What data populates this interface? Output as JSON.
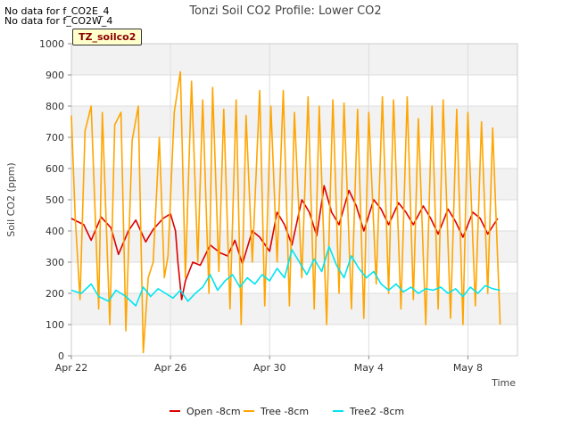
{
  "notes": [
    "No data for f_CO2E_4",
    "No data for f_CO2W_4"
  ],
  "site_label": "TZ_soilco2",
  "chart_data": {
    "type": "line",
    "title": "Tonzi Soil CO2 Profile: Lower CO2",
    "xlabel": "Time",
    "ylabel": "Soil CO2 (ppm)",
    "xlim": [
      0,
      18
    ],
    "ylim": [
      0,
      1000
    ],
    "x_ticks": [
      0,
      4,
      8,
      12,
      16
    ],
    "x_tick_labels": [
      "Apr 22",
      "Apr 26",
      "Apr 30",
      "May 4",
      "May 8"
    ],
    "y_ticks": [
      0,
      100,
      200,
      300,
      400,
      500,
      600,
      700,
      800,
      900,
      1000
    ],
    "grid": true,
    "legend_position": "bottom-center",
    "series": [
      {
        "name": "Open -8cm",
        "color": "#dd0000",
        "x": [
          0,
          0.5,
          0.8,
          1.2,
          1.6,
          1.9,
          2.3,
          2.6,
          3.0,
          3.3,
          3.7,
          4.0,
          4.2,
          4.3,
          4.45,
          4.6,
          4.9,
          5.2,
          5.6,
          6.0,
          6.3,
          6.6,
          6.9,
          7.3,
          7.6,
          8.0,
          8.3,
          8.6,
          8.9,
          9.3,
          9.6,
          9.9,
          10.2,
          10.5,
          10.8,
          11.2,
          11.5,
          11.8,
          12.2,
          12.5,
          12.8,
          13.2,
          13.5,
          13.8,
          14.2,
          14.5,
          14.8,
          15.2,
          15.5,
          15.8,
          16.2,
          16.5,
          16.8,
          17.2
        ],
        "y": [
          440,
          420,
          370,
          445,
          410,
          325,
          400,
          435,
          365,
          405,
          440,
          455,
          400,
          300,
          180,
          240,
          300,
          290,
          355,
          330,
          320,
          370,
          295,
          400,
          380,
          335,
          460,
          420,
          355,
          500,
          460,
          385,
          545,
          460,
          420,
          530,
          480,
          400,
          500,
          470,
          420,
          490,
          460,
          420,
          480,
          440,
          390,
          470,
          430,
          380,
          460,
          440,
          390,
          440
        ]
      },
      {
        "name": "Tree -8cm",
        "color": "#ffa500",
        "x": [
          0,
          0.15,
          0.35,
          0.55,
          0.8,
          1.1,
          1.25,
          1.55,
          1.75,
          2.0,
          2.2,
          2.45,
          2.7,
          2.9,
          3.1,
          3.3,
          3.55,
          3.75,
          3.9,
          4.15,
          4.4,
          4.6,
          4.85,
          5.1,
          5.3,
          5.55,
          5.7,
          5.95,
          6.15,
          6.4,
          6.65,
          6.85,
          7.05,
          7.3,
          7.6,
          7.8,
          8.05,
          8.3,
          8.55,
          8.8,
          9.0,
          9.3,
          9.55,
          9.8,
          10.0,
          10.3,
          10.55,
          10.8,
          11.0,
          11.3,
          11.55,
          11.8,
          12.0,
          12.3,
          12.55,
          12.8,
          13.0,
          13.3,
          13.55,
          13.8,
          14.0,
          14.3,
          14.55,
          14.8,
          15.0,
          15.3,
          15.55,
          15.8,
          16.0,
          16.3,
          16.55,
          16.8,
          17.0,
          17.3
        ],
        "y": [
          770,
          450,
          180,
          720,
          800,
          150,
          780,
          100,
          740,
          780,
          80,
          690,
          800,
          10,
          250,
          300,
          700,
          250,
          320,
          780,
          910,
          250,
          880,
          300,
          820,
          200,
          860,
          270,
          790,
          150,
          820,
          100,
          770,
          300,
          850,
          160,
          800,
          300,
          850,
          160,
          780,
          250,
          830,
          150,
          800,
          100,
          820,
          200,
          810,
          150,
          790,
          120,
          780,
          230,
          830,
          200,
          820,
          150,
          830,
          180,
          760,
          100,
          800,
          150,
          820,
          120,
          790,
          100,
          780,
          160,
          750,
          200,
          730,
          100
        ]
      },
      {
        "name": "Tree2 -8cm",
        "color": "#00e5ee",
        "x": [
          0,
          0.4,
          0.8,
          1.1,
          1.5,
          1.8,
          2.2,
          2.6,
          2.9,
          3.2,
          3.5,
          3.8,
          4.1,
          4.4,
          4.7,
          5.0,
          5.3,
          5.6,
          5.9,
          6.2,
          6.5,
          6.8,
          7.1,
          7.4,
          7.7,
          8.0,
          8.3,
          8.6,
          8.9,
          9.2,
          9.5,
          9.8,
          10.1,
          10.4,
          10.7,
          11.0,
          11.3,
          11.6,
          11.9,
          12.2,
          12.5,
          12.8,
          13.1,
          13.4,
          13.7,
          14.0,
          14.3,
          14.6,
          14.9,
          15.2,
          15.5,
          15.8,
          16.1,
          16.4,
          16.7,
          17.0,
          17.3
        ],
        "y": [
          210,
          200,
          230,
          190,
          175,
          210,
          190,
          160,
          220,
          190,
          215,
          200,
          185,
          210,
          175,
          200,
          220,
          260,
          210,
          240,
          260,
          220,
          250,
          230,
          260,
          240,
          280,
          250,
          340,
          300,
          260,
          310,
          270,
          350,
          290,
          250,
          320,
          280,
          250,
          270,
          230,
          210,
          230,
          205,
          220,
          200,
          215,
          210,
          220,
          200,
          215,
          190,
          220,
          200,
          225,
          215,
          210
        ]
      }
    ]
  }
}
